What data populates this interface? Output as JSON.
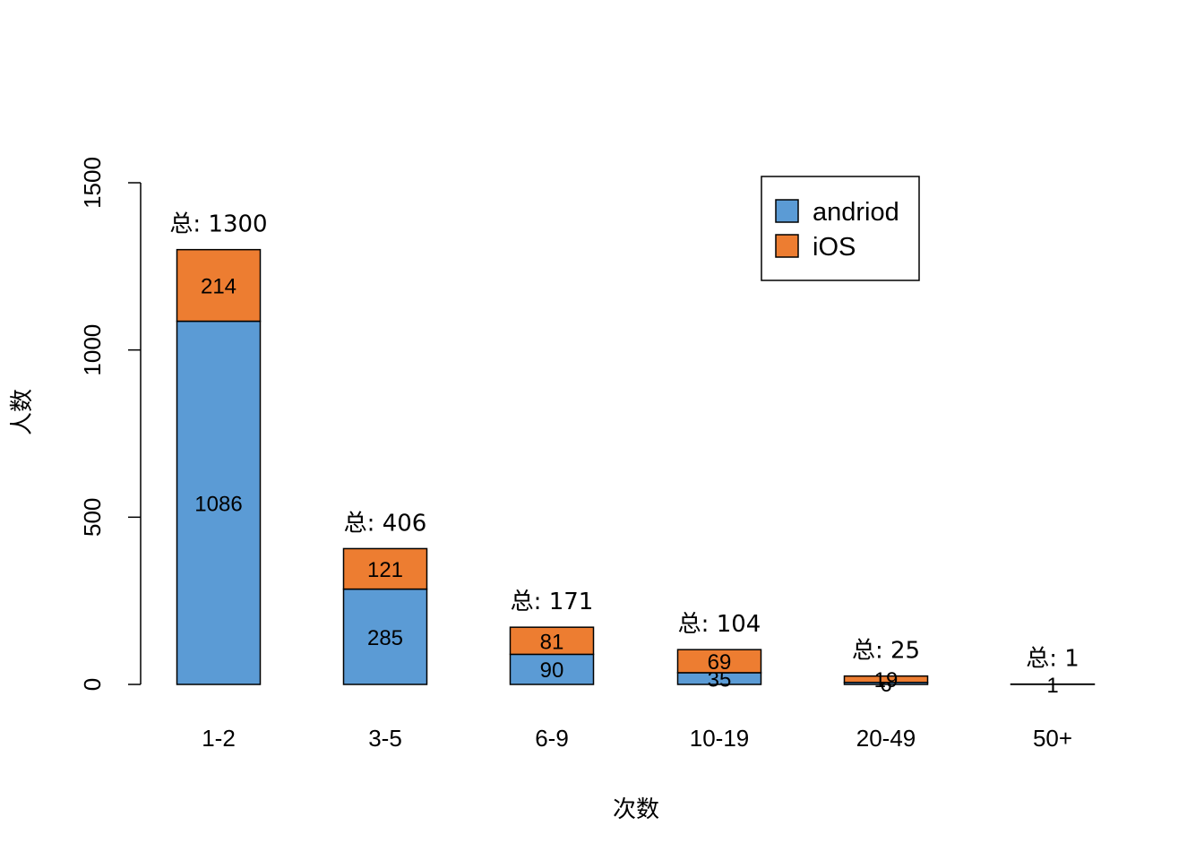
{
  "chart_data": {
    "type": "bar",
    "stacked": true,
    "categories": [
      "1-2",
      "3-5",
      "6-9",
      "10-19",
      "20-49",
      "50+"
    ],
    "series": [
      {
        "name": "andriod",
        "values": [
          1086,
          285,
          90,
          35,
          6,
          0
        ],
        "value_labels": [
          "1086",
          "285",
          "90",
          "35",
          "6",
          ""
        ],
        "color": "#5B9BD5"
      },
      {
        "name": "iOS",
        "values": [
          214,
          121,
          81,
          69,
          19,
          1
        ],
        "value_labels": [
          "214",
          "121",
          "81",
          "69",
          "19",
          "1"
        ],
        "color": "#ED7D31"
      }
    ],
    "total_labels": [
      "总: 1300",
      "总: 406",
      "总: 171",
      "总: 104",
      "总: 25",
      "总: 1"
    ],
    "xlabel": "次数",
    "ylabel": "人数",
    "ylim": [
      0,
      1500
    ],
    "yticks": [
      "0",
      "500",
      "1000",
      "1500"
    ],
    "legend_position": "top-right",
    "grid": false
  }
}
